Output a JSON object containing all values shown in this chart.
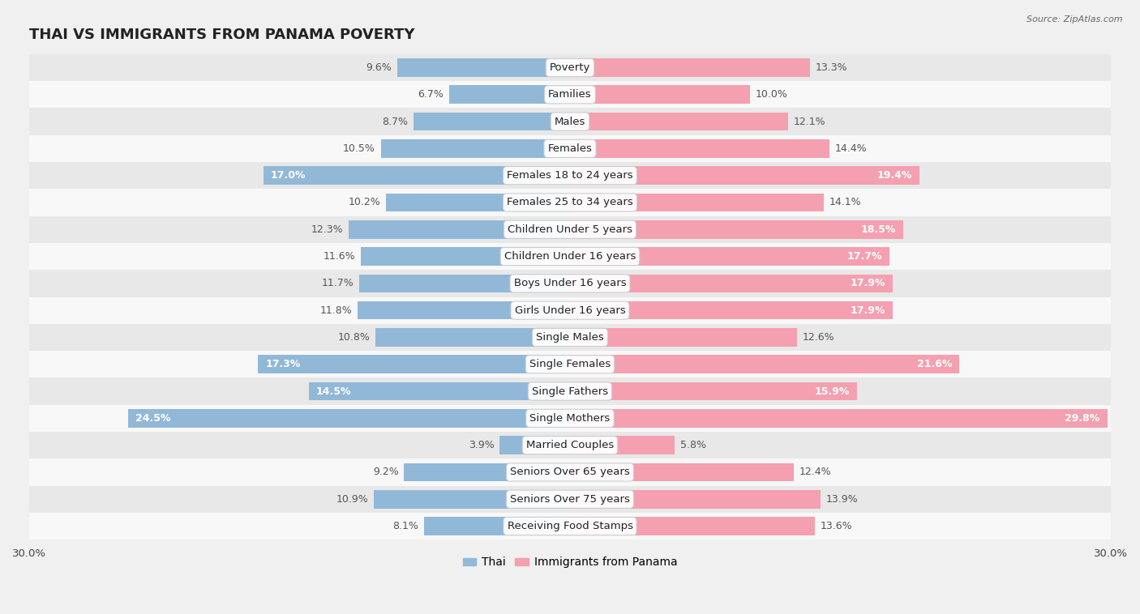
{
  "title": "THAI VS IMMIGRANTS FROM PANAMA POVERTY",
  "source": "Source: ZipAtlas.com",
  "categories": [
    "Poverty",
    "Families",
    "Males",
    "Females",
    "Females 18 to 24 years",
    "Females 25 to 34 years",
    "Children Under 5 years",
    "Children Under 16 years",
    "Boys Under 16 years",
    "Girls Under 16 years",
    "Single Males",
    "Single Females",
    "Single Fathers",
    "Single Mothers",
    "Married Couples",
    "Seniors Over 65 years",
    "Seniors Over 75 years",
    "Receiving Food Stamps"
  ],
  "thai_values": [
    9.6,
    6.7,
    8.7,
    10.5,
    17.0,
    10.2,
    12.3,
    11.6,
    11.7,
    11.8,
    10.8,
    17.3,
    14.5,
    24.5,
    3.9,
    9.2,
    10.9,
    8.1
  ],
  "panama_values": [
    13.3,
    10.0,
    12.1,
    14.4,
    19.4,
    14.1,
    18.5,
    17.7,
    17.9,
    17.9,
    12.6,
    21.6,
    15.9,
    29.8,
    5.8,
    12.4,
    13.9,
    13.6
  ],
  "thai_color": "#92b8d8",
  "panama_color": "#f4a0b0",
  "value_color_dark": "#555555",
  "value_color_white": "#ffffff",
  "white_threshold_thai": 14.0,
  "white_threshold_panama": 15.0,
  "max_val": 30.0,
  "background_color": "#f0f0f0",
  "row_bg_even": "#e8e8e8",
  "row_bg_odd": "#f8f8f8",
  "title_fontsize": 13,
  "cat_fontsize": 9.5,
  "value_fontsize": 9,
  "legend_fontsize": 10,
  "bar_height": 0.68
}
